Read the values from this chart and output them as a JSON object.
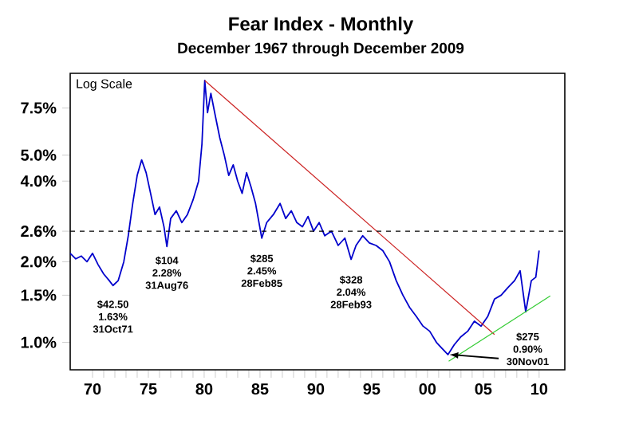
{
  "chart_data": {
    "type": "line",
    "title": "Fear Index - Monthly",
    "subtitle": "December 1967 through December 2009",
    "log": "y",
    "grid": false,
    "marker": "none",
    "line_style": "solid",
    "xlim": [
      1968,
      2012.3
    ],
    "ylim": [
      0.79,
      10.1
    ],
    "xticks": [
      {
        "value": 1970,
        "label": "70"
      },
      {
        "value": 1975,
        "label": "75"
      },
      {
        "value": 1980,
        "label": "80"
      },
      {
        "value": 1985,
        "label": "85"
      },
      {
        "value": 1990,
        "label": "90"
      },
      {
        "value": 1995,
        "label": "95"
      },
      {
        "value": 2000,
        "label": "00"
      },
      {
        "value": 2005,
        "label": "05"
      },
      {
        "value": 2010,
        "label": "10"
      }
    ],
    "yticks": [
      {
        "value": 1.0,
        "label": "1.0%"
      },
      {
        "value": 1.5,
        "label": "1.5%"
      },
      {
        "value": 2.0,
        "label": "2.0%"
      },
      {
        "value": 2.6,
        "label": "2.6%"
      },
      {
        "value": 4.0,
        "label": "4.0%"
      },
      {
        "value": 5.0,
        "label": "5.0%"
      },
      {
        "value": 7.5,
        "label": "7.5%"
      }
    ],
    "series": [
      {
        "color": "#0000cc",
        "x": [
          1968.0,
          1968.5,
          1969.0,
          1969.5,
          1970.0,
          1970.5,
          1971.0,
          1971.5,
          1971.83,
          1972.3,
          1972.8,
          1973.2,
          1973.6,
          1974.0,
          1974.4,
          1974.8,
          1975.2,
          1975.6,
          1976.0,
          1976.4,
          1976.66,
          1977.0,
          1977.5,
          1978.0,
          1978.5,
          1979.0,
          1979.5,
          1979.8,
          1980.05,
          1980.3,
          1980.6,
          1981.0,
          1981.4,
          1981.8,
          1982.2,
          1982.6,
          1983.0,
          1983.4,
          1983.8,
          1984.2,
          1984.6,
          1985.16,
          1985.6,
          1986.2,
          1986.8,
          1987.3,
          1987.8,
          1988.3,
          1988.8,
          1989.3,
          1989.8,
          1990.3,
          1990.8,
          1991.4,
          1992.0,
          1992.6,
          1993.16,
          1993.6,
          1994.2,
          1994.8,
          1995.4,
          1996.0,
          1996.6,
          1997.2,
          1997.8,
          1998.4,
          1999.0,
          1999.6,
          2000.2,
          2000.8,
          2001.3,
          2001.83,
          2002.4,
          2003.0,
          2003.6,
          2004.2,
          2004.8,
          2005.4,
          2006.0,
          2006.6,
          2007.2,
          2007.8,
          2008.3,
          2008.8,
          2009.3,
          2009.7,
          2010.0
        ],
        "values": [
          2.15,
          2.05,
          2.1,
          2.0,
          2.15,
          1.95,
          1.8,
          1.7,
          1.63,
          1.7,
          2.0,
          2.5,
          3.3,
          4.2,
          4.8,
          4.3,
          3.6,
          3.0,
          3.2,
          2.7,
          2.28,
          2.9,
          3.1,
          2.8,
          3.0,
          3.4,
          4.0,
          5.5,
          9.5,
          7.2,
          8.5,
          7.0,
          5.8,
          5.0,
          4.2,
          4.6,
          4.0,
          3.6,
          4.3,
          3.8,
          3.3,
          2.45,
          2.8,
          3.0,
          3.3,
          2.9,
          3.1,
          2.8,
          2.7,
          2.95,
          2.6,
          2.8,
          2.5,
          2.6,
          2.3,
          2.45,
          2.04,
          2.3,
          2.5,
          2.35,
          2.3,
          2.2,
          2.0,
          1.7,
          1.5,
          1.35,
          1.25,
          1.15,
          1.1,
          1.0,
          0.95,
          0.9,
          0.98,
          1.05,
          1.1,
          1.2,
          1.15,
          1.25,
          1.45,
          1.5,
          1.6,
          1.7,
          1.85,
          1.3,
          1.7,
          1.75,
          2.2
        ]
      },
      {
        "color": "#cc2222",
        "x": [
          1980.05,
          2006.0
        ],
        "values": [
          9.5,
          1.07
        ]
      },
      {
        "color": "#33cc33",
        "x": [
          2001.9,
          2011.0
        ],
        "values": [
          0.85,
          1.49
        ]
      }
    ],
    "ref_lines": [
      {
        "axis": "y",
        "value": 2.6,
        "color": "#000000",
        "line_style": "dashed"
      }
    ],
    "annotations": [
      "Log Scale",
      {
        "text": "$42.50 1.63% 31Oct71",
        "x": 1971.83,
        "y": 1.63
      },
      {
        "text": "$104 2.28% 31Aug76",
        "x": 1976.66,
        "y": 2.28
      },
      {
        "text": "$285 2.45% 28Feb85",
        "x": 1985.16,
        "y": 2.45
      },
      {
        "text": "$328 2.04% 28Feb93",
        "x": 1993.16,
        "y": 2.04
      },
      {
        "text": "$275 0.90% 30Nov01",
        "x": 2001.83,
        "y": 0.9
      }
    ]
  }
}
